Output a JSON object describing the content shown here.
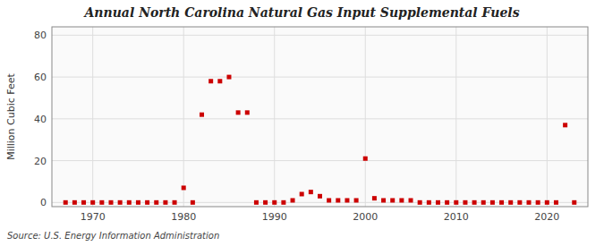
{
  "chart_data": {
    "type": "scatter",
    "title": "Annual North Carolina Natural Gas Input Supplemental Fuels",
    "ylabel": "Million Cubic Feet",
    "annotations": [
      "Source: U.S. Energy Information Administration"
    ],
    "x": [
      1967,
      1968,
      1969,
      1970,
      1971,
      1972,
      1973,
      1974,
      1975,
      1976,
      1977,
      1978,
      1979,
      1980,
      1981,
      1982,
      1983,
      1984,
      1985,
      1986,
      1987,
      1988,
      1989,
      1990,
      1991,
      1992,
      1993,
      1994,
      1995,
      1996,
      1997,
      1998,
      1999,
      2000,
      2001,
      2002,
      2003,
      2004,
      2005,
      2006,
      2007,
      2008,
      2009,
      2010,
      2011,
      2012,
      2013,
      2014,
      2015,
      2016,
      2017,
      2018,
      2019,
      2020,
      2021,
      2022,
      2023
    ],
    "values": [
      0,
      0,
      0,
      0,
      0,
      0,
      0,
      0,
      0,
      0,
      0,
      0,
      0,
      7,
      0,
      42,
      58,
      58,
      60,
      43,
      43,
      0,
      0,
      0,
      0,
      1,
      4,
      5,
      3,
      1,
      1,
      1,
      1,
      21,
      2,
      1,
      1,
      1,
      1,
      0,
      0,
      0,
      0,
      0,
      0,
      0,
      0,
      0,
      0,
      0,
      0,
      0,
      0,
      0,
      0,
      37,
      0
    ],
    "color": "#cc0000",
    "marker": "square",
    "xlim": [
      1965.5,
      2024.5
    ],
    "ylim": [
      -2,
      84
    ],
    "xticks": [
      1970,
      1980,
      1990,
      2000,
      2010,
      2020
    ],
    "yticks": [
      0,
      20,
      40,
      60,
      80
    ],
    "grid": true
  }
}
